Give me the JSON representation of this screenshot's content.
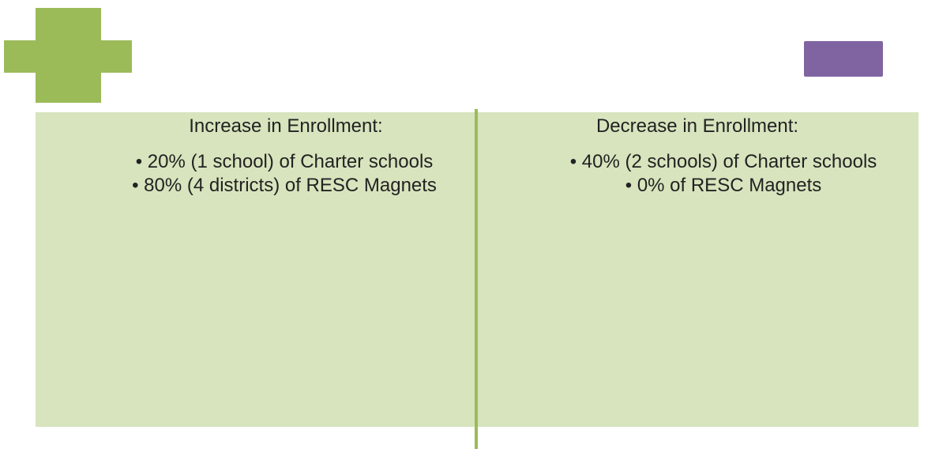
{
  "panels": [
    {
      "heading": "Increase in Enrollment:",
      "bullets": [
        "20% (1 school) of Charter schools",
        "80% (4 districts) of RESC Magnets"
      ]
    },
    {
      "heading": "Decrease in Enrollment:",
      "bullets": [
        "40% (2 schools) of Charter schools",
        "0% of RESC Magnets"
      ]
    }
  ]
}
